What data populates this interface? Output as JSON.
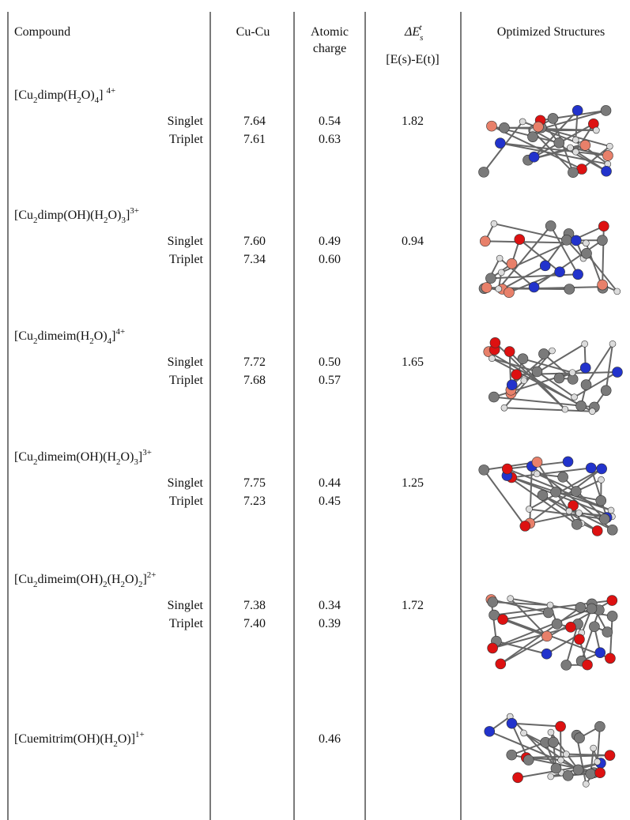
{
  "header": {
    "compound": "Compound",
    "cu_cu": "Cu-Cu",
    "charge": [
      "Atomic",
      "charge"
    ],
    "delta_e": {
      "base": "ΔE",
      "sub": "s",
      "sup": "t"
    },
    "delta_e_def": "[E(s)-E(t)]",
    "structures": "Optimized Structures"
  },
  "rows": [
    {
      "name": [
        {
          "t": "[Cu"
        },
        {
          "sub": "2"
        },
        {
          "t": "dimp(H"
        },
        {
          "sub": "2"
        },
        {
          "t": "O)"
        },
        {
          "sub": "4"
        },
        {
          "t": "] "
        },
        {
          "sup": "4+"
        }
      ],
      "states": [
        {
          "label": "Singlet",
          "cu_cu": "7.64",
          "charge": "0.54"
        },
        {
          "label": "Triplet",
          "cu_cu": "7.61",
          "charge": "0.63"
        }
      ],
      "delta": "1.82"
    },
    {
      "name": [
        {
          "t": "[Cu"
        },
        {
          "sub": "2"
        },
        {
          "t": "dimp(OH)(H"
        },
        {
          "sub": "2"
        },
        {
          "t": "O)"
        },
        {
          "sub": "3"
        },
        {
          "t": "]"
        },
        {
          "sup": "3+"
        }
      ],
      "states": [
        {
          "label": "Singlet",
          "cu_cu": "7.60",
          "charge": "0.49"
        },
        {
          "label": "Triplet",
          "cu_cu": "7.34",
          "charge": "0.60"
        }
      ],
      "delta": "0.94"
    },
    {
      "name": [
        {
          "t": "[Cu"
        },
        {
          "sub": "2"
        },
        {
          "t": "dimeim(H"
        },
        {
          "sub": "2"
        },
        {
          "t": "O)"
        },
        {
          "sub": "4"
        },
        {
          "t": "]"
        },
        {
          "sup": "4+"
        }
      ],
      "states": [
        {
          "label": "Singlet",
          "cu_cu": "7.72",
          "charge": "0.50"
        },
        {
          "label": "Triplet",
          "cu_cu": "7.68",
          "charge": "0.57"
        }
      ],
      "delta": "1.65"
    },
    {
      "name": [
        {
          "t": "[Cu"
        },
        {
          "sub": "2"
        },
        {
          "t": "dimeim(OH)(H"
        },
        {
          "sub": "2"
        },
        {
          "t": "O)"
        },
        {
          "sub": "3"
        },
        {
          "t": "]"
        },
        {
          "sup": "3+"
        }
      ],
      "states": [
        {
          "label": "Singlet",
          "cu_cu": "7.75",
          "charge": "0.44"
        },
        {
          "label": "Triplet",
          "cu_cu": "7.23",
          "charge": "0.45"
        }
      ],
      "delta": "1.25"
    },
    {
      "name": [
        {
          "t": "[Cu"
        },
        {
          "sub": "2"
        },
        {
          "t": "dimeim(OH)"
        },
        {
          "sub": "2"
        },
        {
          "t": "(H"
        },
        {
          "sub": "2"
        },
        {
          "t": "O)"
        },
        {
          "sub": "2"
        },
        {
          "t": "]"
        },
        {
          "sup": "2+"
        }
      ],
      "states": [
        {
          "label": "Singlet",
          "cu_cu": "7.38",
          "charge": "0.34"
        },
        {
          "label": "Triplet",
          "cu_cu": "7.40",
          "charge": "0.39"
        }
      ],
      "delta": "1.72"
    },
    {
      "name": [
        {
          "t": "[Cuemitrim(OH)(H"
        },
        {
          "sub": "2"
        },
        {
          "t": "O)]"
        },
        {
          "sup": "1+"
        }
      ],
      "charge": "0.46"
    }
  ]
}
